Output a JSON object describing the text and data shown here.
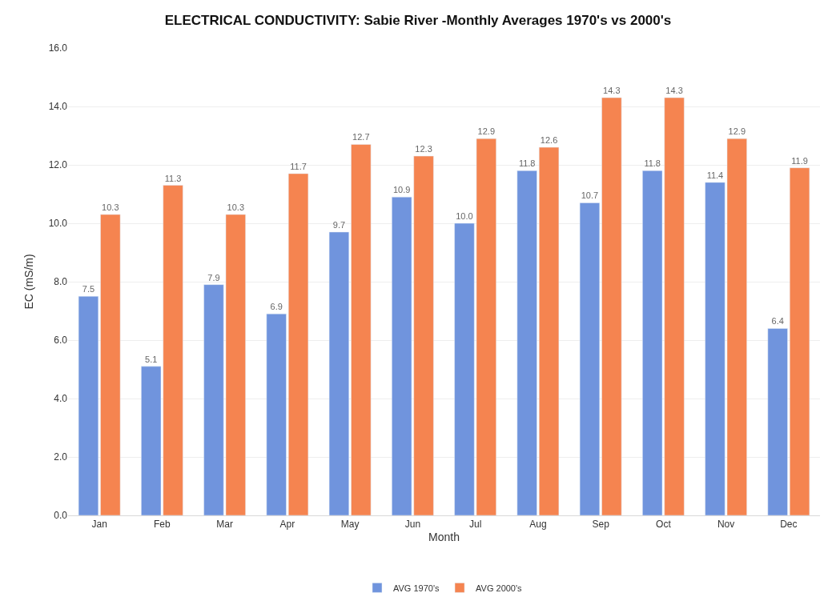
{
  "chart_data": {
    "type": "bar",
    "title": "ELECTRICAL CONDUCTIVITY: Sabie River -Monthly Averages 1970's vs 2000's",
    "xlabel": "Month",
    "ylabel": "EC (mS/m)",
    "categories": [
      "Jan",
      "Feb",
      "Mar",
      "Apr",
      "May",
      "Jun",
      "Jul",
      "Aug",
      "Sep",
      "Oct",
      "Nov",
      "Dec"
    ],
    "series": [
      {
        "name": "AVG 1970's",
        "color": "#7094dd",
        "values": [
          7.5,
          5.1,
          7.9,
          6.9,
          9.7,
          10.9,
          10.0,
          11.8,
          10.7,
          11.8,
          11.4,
          6.4
        ],
        "value_labels": [
          "7.5",
          "5.1",
          "7.9",
          "6.9",
          "9.7",
          "10.9",
          "10.0",
          "11.8",
          "10.7",
          "11.8",
          "11.4",
          "6.4"
        ]
      },
      {
        "name": "AVG 2000's",
        "color": "#f58450",
        "values": [
          10.3,
          11.3,
          10.3,
          11.7,
          12.7,
          12.3,
          12.9,
          12.6,
          14.3,
          14.3,
          12.9,
          11.9
        ],
        "value_labels": [
          "10.3",
          "11.3",
          "10.3",
          "11.7",
          "12.7",
          "12.3",
          "12.9",
          "12.6",
          "14.3",
          "14.3",
          "12.9",
          "11.9"
        ]
      }
    ],
    "ylim": [
      0,
      16
    ],
    "yticks": [
      {
        "value": 0,
        "label": "0.0"
      },
      {
        "value": 2,
        "label": "2.0"
      },
      {
        "value": 4,
        "label": "4.0"
      },
      {
        "value": 6,
        "label": "6.0"
      },
      {
        "value": 8,
        "label": "8.0"
      },
      {
        "value": 10,
        "label": "10.0"
      },
      {
        "value": 12,
        "label": "12.0"
      },
      {
        "value": 14,
        "label": "14.0"
      },
      {
        "value": 16,
        "label": "16.0"
      }
    ],
    "grid": "y",
    "legend": "bottom"
  }
}
